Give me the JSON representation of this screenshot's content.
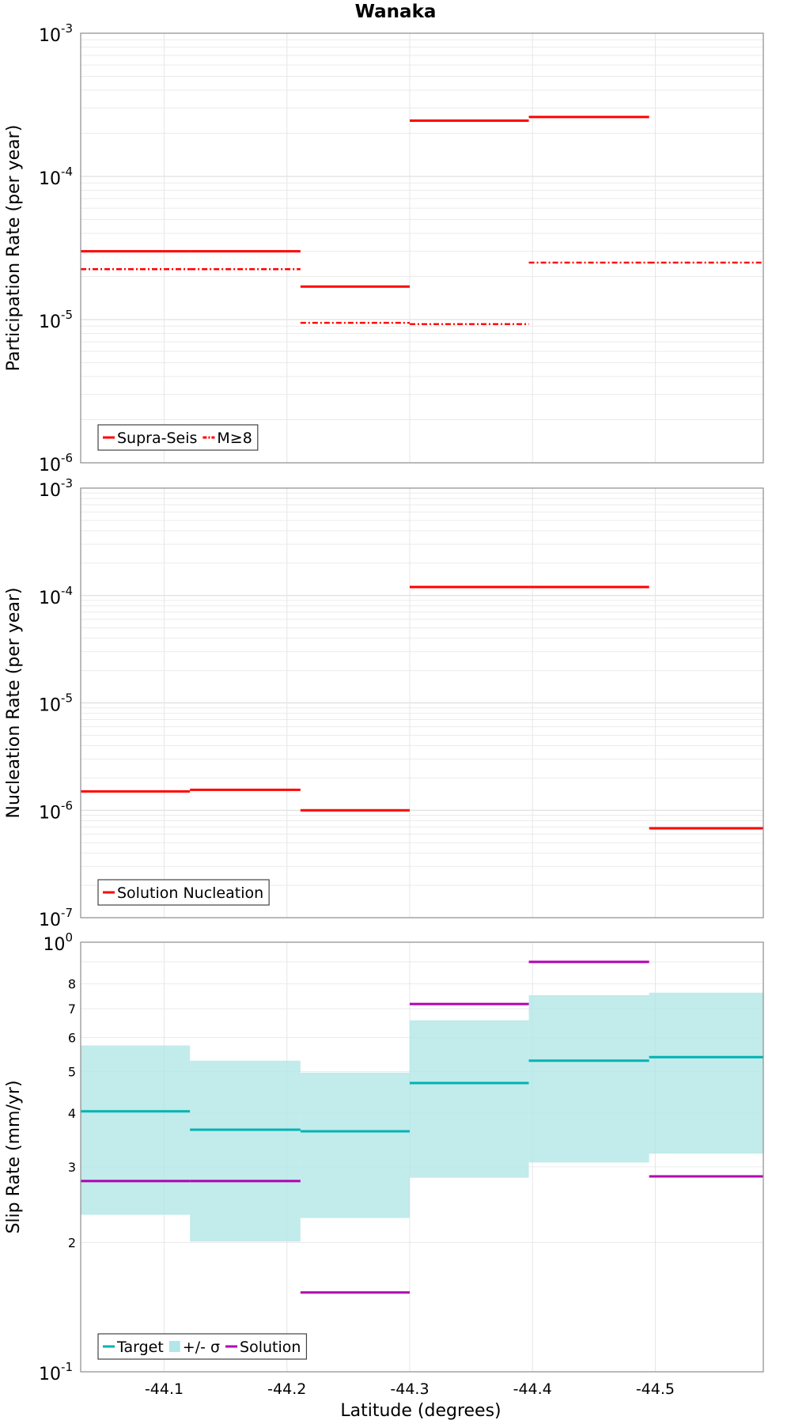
{
  "chart_data": [
    {
      "type": "line",
      "title": "Wanaka",
      "xlabel": "",
      "ylabel": "Participation Rate (per year)",
      "yscale": "log",
      "ylim": [
        1e-06,
        0.001
      ],
      "xlim": [
        -44.032,
        -44.588
      ],
      "xticks": [
        -44.1,
        -44.2,
        -44.3,
        -44.4,
        -44.5
      ],
      "grid": true,
      "legend_position": "bottom-left",
      "series": [
        {
          "name": "Supra-Seis",
          "style": "solid",
          "color": "#ff0000",
          "segments": [
            {
              "x": [
                -44.032,
                -44.121
              ],
              "y": 3e-05
            },
            {
              "x": [
                -44.121,
                -44.211
              ],
              "y": 3e-05
            },
            {
              "x": [
                -44.211,
                -44.3
              ],
              "y": 1.7e-05
            },
            {
              "x": [
                -44.3,
                -44.397
              ],
              "y": 0.000245
            },
            {
              "x": [
                -44.397,
                -44.495
              ],
              "y": 0.00026
            }
          ]
        },
        {
          "name": "M≥8",
          "style": "dashdot",
          "color": "#ff0000",
          "segments": [
            {
              "x": [
                -44.032,
                -44.121
              ],
              "y": 2.25e-05
            },
            {
              "x": [
                -44.121,
                -44.211
              ],
              "y": 2.25e-05
            },
            {
              "x": [
                -44.211,
                -44.3
              ],
              "y": 9.5e-06
            },
            {
              "x": [
                -44.3,
                -44.397
              ],
              "y": 9.3e-06
            },
            {
              "x": [
                -44.397,
                -44.495
              ],
              "y": 2.5e-05
            },
            {
              "x": [
                -44.495,
                -44.588
              ],
              "y": 2.5e-05
            }
          ]
        }
      ]
    },
    {
      "type": "line",
      "xlabel": "",
      "ylabel": "Nucleation Rate (per year)",
      "yscale": "log",
      "ylim": [
        1e-07,
        0.001
      ],
      "xlim": [
        -44.032,
        -44.588
      ],
      "xticks": [
        -44.1,
        -44.2,
        -44.3,
        -44.4,
        -44.5
      ],
      "grid": true,
      "legend_position": "bottom-left",
      "series": [
        {
          "name": "Solution Nucleation",
          "style": "solid",
          "color": "#ff0000",
          "segments": [
            {
              "x": [
                -44.032,
                -44.121
              ],
              "y": 1.5e-06
            },
            {
              "x": [
                -44.121,
                -44.211
              ],
              "y": 1.55e-06
            },
            {
              "x": [
                -44.211,
                -44.3
              ],
              "y": 1e-06
            },
            {
              "x": [
                -44.3,
                -44.397
              ],
              "y": 0.00012
            },
            {
              "x": [
                -44.397,
                -44.495
              ],
              "y": 0.00012
            },
            {
              "x": [
                -44.495,
                -44.588
              ],
              "y": 6.8e-07
            }
          ]
        }
      ]
    },
    {
      "type": "line",
      "xlabel": "Latitude (degrees)",
      "ylabel": "Slip Rate (mm/yr)",
      "yscale": "log",
      "ylim": [
        0.1,
        1.0
      ],
      "ytick_minor_labels": [
        "2",
        "3",
        "4",
        "5",
        "6",
        "7",
        "8"
      ],
      "xlim": [
        -44.032,
        -44.588
      ],
      "xticks": [
        -44.1,
        -44.2,
        -44.3,
        -44.4,
        -44.5
      ],
      "grid": true,
      "legend_position": "bottom-left",
      "band": {
        "name": "+/- σ",
        "color": "#b3e6e6",
        "segments": [
          {
            "x": [
              -44.032,
              -44.121
            ],
            "low": 0.232,
            "high": 0.575
          },
          {
            "x": [
              -44.121,
              -44.211
            ],
            "low": 0.201,
            "high": 0.53
          },
          {
            "x": [
              -44.211,
              -44.3
            ],
            "low": 0.228,
            "high": 0.497
          },
          {
            "x": [
              -44.3,
              -44.397
            ],
            "low": 0.283,
            "high": 0.658
          },
          {
            "x": [
              -44.397,
              -44.495
            ],
            "low": 0.307,
            "high": 0.753
          },
          {
            "x": [
              -44.495,
              -44.588
            ],
            "low": 0.322,
            "high": 0.763
          }
        ]
      },
      "series": [
        {
          "name": "Target",
          "style": "solid",
          "color": "#00b3b3",
          "segments": [
            {
              "x": [
                -44.032,
                -44.121
              ],
              "y": 0.404
            },
            {
              "x": [
                -44.121,
                -44.211
              ],
              "y": 0.366
            },
            {
              "x": [
                -44.211,
                -44.3
              ],
              "y": 0.363
            },
            {
              "x": [
                -44.3,
                -44.397
              ],
              "y": 0.47
            },
            {
              "x": [
                -44.397,
                -44.495
              ],
              "y": 0.53
            },
            {
              "x": [
                -44.495,
                -44.588
              ],
              "y": 0.54
            }
          ]
        },
        {
          "name": "Solution",
          "style": "solid",
          "color": "#b300b3",
          "segments": [
            {
              "x": [
                -44.032,
                -44.121
              ],
              "y": 0.278
            },
            {
              "x": [
                -44.121,
                -44.211
              ],
              "y": 0.278
            },
            {
              "x": [
                -44.211,
                -44.3
              ],
              "y": 0.153
            },
            {
              "x": [
                -44.3,
                -44.397
              ],
              "y": 0.718
            },
            {
              "x": [
                -44.397,
                -44.495
              ],
              "y": 0.9
            },
            {
              "x": [
                -44.495,
                -44.588
              ],
              "y": 0.285
            }
          ]
        }
      ]
    }
  ]
}
